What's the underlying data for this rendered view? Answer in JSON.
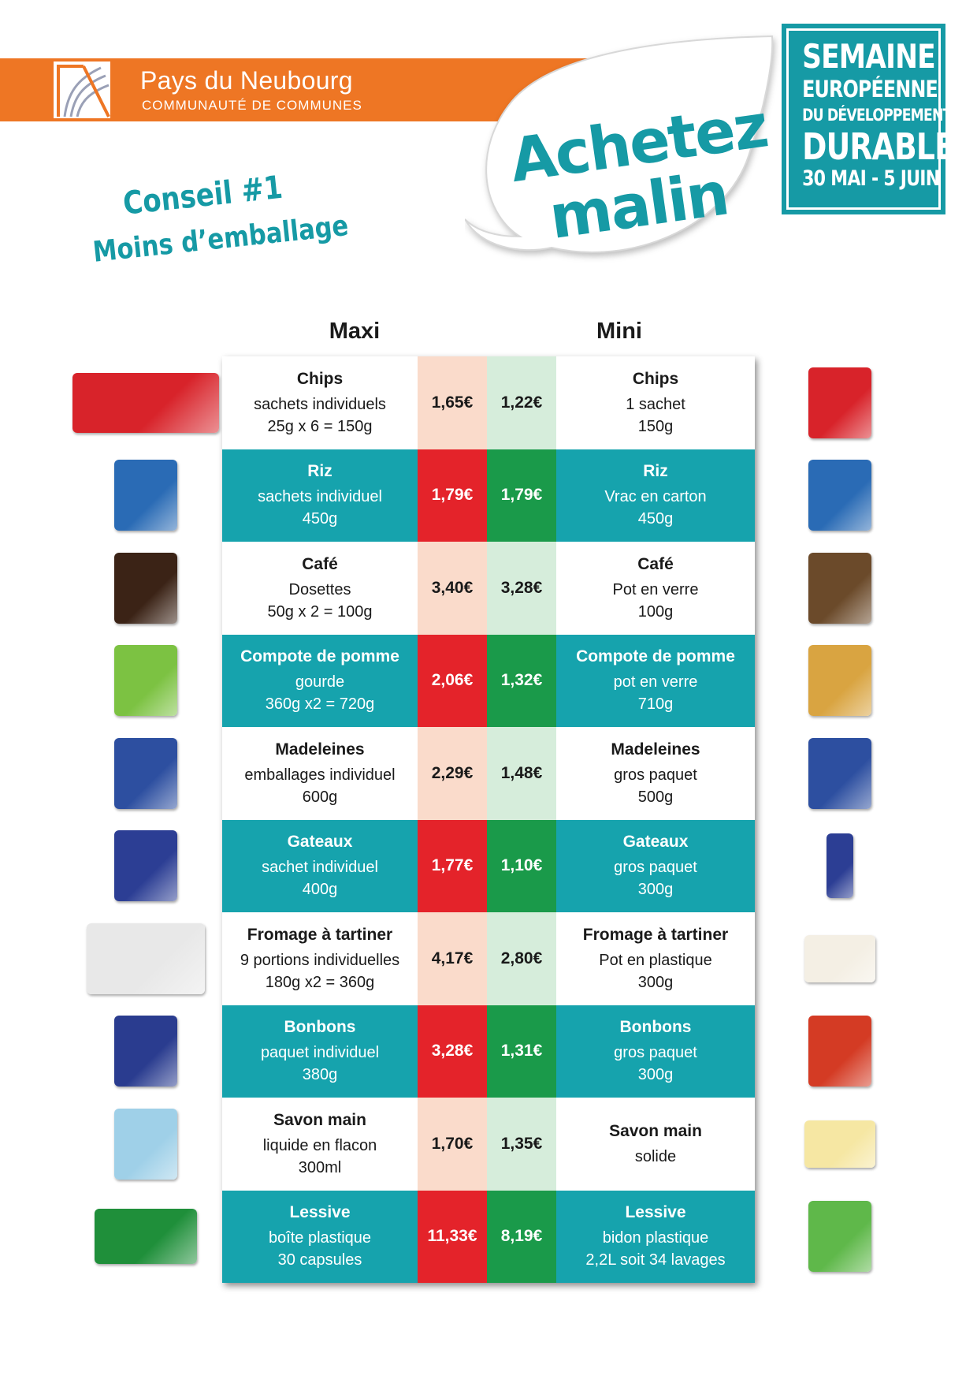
{
  "header": {
    "org_name": "Pays du Neubourg",
    "org_subtitle": "COMMUNAUTÉ DE COMMUNES",
    "slogan_line1": "Achetez",
    "slogan_line2": "malin",
    "event": [
      "SEMAINE",
      "EUROPÉENNE",
      "DU DÉVELOPPEMENT",
      "DURABLE",
      "30 MAI - 5 JUIN"
    ],
    "advice_title": "Conseil #1",
    "advice_subtitle": "Moins d’emballage"
  },
  "columns": {
    "maxi": "Maxi",
    "mini": "Mini"
  },
  "colors": {
    "teal": "#16a3ad",
    "orange": "#ee7624",
    "red_price": "#e4232a",
    "green_price": "#1a9a4a",
    "pink_price_bg": "#fadbcb",
    "light_green_price_bg": "#d6eddb"
  },
  "rows": [
    {
      "maxi": {
        "name": "Chips",
        "line1": "sachets individuels",
        "line2": "25g x 6 = 150g"
      },
      "price_maxi": "1,65€",
      "price_mini": "1,22€",
      "mini": {
        "name": "Chips",
        "line1": "1 sachet",
        "line2": "150g"
      }
    },
    {
      "maxi": {
        "name": "Riz",
        "line1": "sachets individuel",
        "line2": "450g"
      },
      "price_maxi": "1,79€",
      "price_mini": "1,79€",
      "mini": {
        "name": "Riz",
        "line1": "Vrac en carton",
        "line2": "450g"
      }
    },
    {
      "maxi": {
        "name": "Café",
        "line1": "Dosettes",
        "line2": "50g x 2 = 100g"
      },
      "price_maxi": "3,40€",
      "price_mini": "3,28€",
      "mini": {
        "name": "Café",
        "line1": "Pot en verre",
        "line2": "100g"
      }
    },
    {
      "maxi": {
        "name": "Compote de pomme",
        "line1": "gourde",
        "line2": "360g x2 = 720g"
      },
      "price_maxi": "2,06€",
      "price_mini": "1,32€",
      "mini": {
        "name": "Compote de pomme",
        "line1": "pot en verre",
        "line2": "710g"
      }
    },
    {
      "maxi": {
        "name": "Madeleines",
        "line1": "emballages individuel",
        "line2": "600g"
      },
      "price_maxi": "2,29€",
      "price_mini": "1,48€",
      "mini": {
        "name": "Madeleines",
        "line1": "gros paquet",
        "line2": "500g"
      }
    },
    {
      "maxi": {
        "name": "Gateaux",
        "line1": "sachet individuel",
        "line2": "400g"
      },
      "price_maxi": "1,77€",
      "price_mini": "1,10€",
      "mini": {
        "name": "Gateaux",
        "line1": "gros paquet",
        "line2": "300g"
      }
    },
    {
      "maxi": {
        "name": "Fromage à tartiner",
        "line1": "9 portions individuelles",
        "line2": "180g x2 = 360g"
      },
      "price_maxi": "4,17€",
      "price_mini": "2,80€",
      "mini": {
        "name": "Fromage à tartiner",
        "line1": "Pot en plastique",
        "line2": "300g"
      }
    },
    {
      "maxi": {
        "name": "Bonbons",
        "line1": "paquet individuel",
        "line2": "380g"
      },
      "price_maxi": "3,28€",
      "price_mini": "1,31€",
      "mini": {
        "name": "Bonbons",
        "line1": "gros paquet",
        "line2": "300g"
      }
    },
    {
      "maxi": {
        "name": "Savon main",
        "line1": "liquide en flacon",
        "line2": "300ml"
      },
      "price_maxi": "1,70€",
      "price_mini": "1,35€",
      "mini": {
        "name": "Savon main",
        "line1": "solide",
        "line2": ""
      }
    },
    {
      "maxi": {
        "name": "Lessive",
        "line1": "boîte plastique",
        "line2": "30 capsules"
      },
      "price_maxi": "11,33€",
      "price_mini": "8,19€",
      "mini": {
        "name": "Lessive",
        "line1": "bidon plastique",
        "line2": "2,2L soit 34 lavages"
      }
    }
  ],
  "thumbnails_left": [
    {
      "icon": "chips-multipack-icon",
      "color": "#d8232a"
    },
    {
      "icon": "rice-box-icon",
      "color": "#2a6bb5"
    },
    {
      "icon": "coffee-pods-icon",
      "color": "#3b2316"
    },
    {
      "icon": "compote-pouch-icon",
      "color": "#7cc242"
    },
    {
      "icon": "madeleines-bag-icon",
      "color": "#2d4fa0"
    },
    {
      "icon": "cake-box-icon",
      "color": "#2c3e94"
    },
    {
      "icon": "cheese-portions-icon",
      "color": "#e8e8e8"
    },
    {
      "icon": "candy-bag-icon",
      "color": "#2a3c8f"
    },
    {
      "icon": "soap-bottle-icon",
      "color": "#9fd0e8"
    },
    {
      "icon": "detergent-tub-icon",
      "color": "#1f8f3a"
    }
  ],
  "thumbnails_right": [
    {
      "icon": "chips-bag-icon",
      "color": "#d8232a"
    },
    {
      "icon": "rice-carton-icon",
      "color": "#2a6bb5"
    },
    {
      "icon": "coffee-jar-icon",
      "color": "#6b4a2a"
    },
    {
      "icon": "compote-jar-icon",
      "color": "#d9a441"
    },
    {
      "icon": "madeleines-bigbag-icon",
      "color": "#2d4fa0"
    },
    {
      "icon": "cake-tube-icon",
      "color": "#2c3e94"
    },
    {
      "icon": "cheese-tub-icon",
      "color": "#f4efe4"
    },
    {
      "icon": "candy-bigbag-icon",
      "color": "#d43b24"
    },
    {
      "icon": "soap-bar-icon",
      "color": "#f6e7a3"
    },
    {
      "icon": "detergent-jug-icon",
      "color": "#5fb84a"
    }
  ]
}
